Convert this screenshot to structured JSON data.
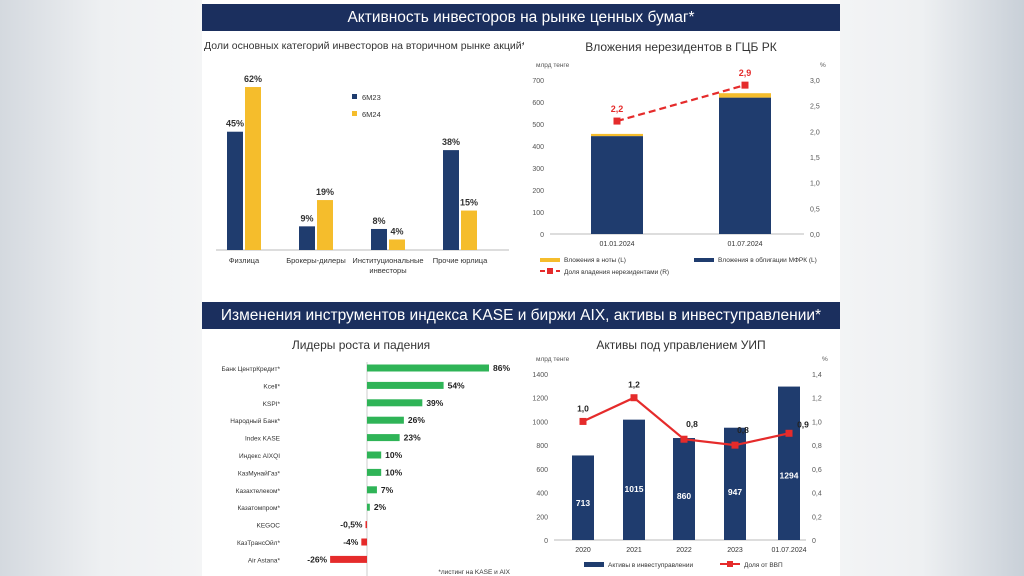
{
  "banner_top": "Активность инвесторов на рынке ценных бумаг*",
  "banner_bottom": "Изменения инструментов индекса KASE и биржи AIX, активы в инвеступравлении*",
  "footnote": "*листинг на KASE и AIX",
  "colors": {
    "navy": "#1f3c6e",
    "gold": "#f5bd2c",
    "green": "#2fb457",
    "red": "#e52b2b",
    "banner": "#1b2f5e"
  },
  "chart_data": [
    {
      "type": "bar",
      "title": "Доли основных категорий инвесторов на вторичном рынке акций**",
      "categories": [
        "Физлица",
        "Брокеры-дилеры",
        "Институциональные инвесторы",
        "Прочие юрлица"
      ],
      "category_lines": [
        [
          "Физлица"
        ],
        [
          "Брокеры-дилеры"
        ],
        [
          "Институциональные",
          "инвесторы"
        ],
        [
          "Прочие юрлица"
        ]
      ],
      "series": [
        {
          "name": "6М23",
          "values": [
            45,
            9,
            8,
            38
          ],
          "labels": [
            "45%",
            "9%",
            "8%",
            "38%"
          ]
        },
        {
          "name": "6М24",
          "values": [
            62,
            19,
            4,
            15
          ],
          "labels": [
            "62%",
            "19%",
            "4%",
            "15%"
          ]
        }
      ],
      "ylim": [
        0,
        70
      ],
      "legend": "top-right"
    },
    {
      "type": "bar",
      "title": "Вложения нерезидентов в ГЦБ РК",
      "ylabel_left": "млрд тенге",
      "ylabel_right": "%",
      "categories": [
        "01.01.2024",
        "01.07.2024"
      ],
      "stacked_series": [
        {
          "name": "Вложения в облигации МФРК (L)",
          "values": [
            445,
            620
          ]
        },
        {
          "name": "Вложения в ноты (L)",
          "values": [
            10,
            20
          ]
        }
      ],
      "line_series": {
        "name": "Доля владения нерезидентами (R)",
        "values": [
          2.2,
          2.9
        ],
        "labels": [
          "2,2",
          "2,9"
        ]
      },
      "yticks_left": [
        "0",
        "100",
        "200",
        "300",
        "400",
        "500",
        "600",
        "700"
      ],
      "yticks_right": [
        "0,0",
        "0,5",
        "1,0",
        "1,5",
        "2,0",
        "2,5",
        "3,0"
      ],
      "ylim_left": [
        0,
        700
      ],
      "ylim_right": [
        0,
        3.0
      ],
      "legend": "bottom"
    },
    {
      "type": "bar",
      "orientation": "horizontal",
      "title": "Лидеры роста и падения",
      "categories": [
        "Банк ЦентрКредит*",
        "Kcell*",
        "KSPI*",
        "Народный Банк*",
        "Index KASE",
        "Индекс AIXQI",
        "КазМунайГаз*",
        "Казахтелеком*",
        "Казатомпром*",
        "KEGOC",
        "КазТрансОйл*",
        "Air Astana*"
      ],
      "values": [
        86,
        54,
        39,
        26,
        23,
        10,
        10,
        7,
        2,
        -0.5,
        -4,
        -26
      ],
      "labels": [
        "86%",
        "54%",
        "39%",
        "26%",
        "23%",
        "10%",
        "10%",
        "7%",
        "2%",
        "-0,5%",
        "-4%",
        "-26%"
      ]
    },
    {
      "type": "bar",
      "title": "Активы под управлением УИП",
      "ylabel_left": "млрд тенге",
      "ylabel_right": "%",
      "categories": [
        "2020",
        "2021",
        "2022",
        "2023",
        "01.07.2024"
      ],
      "bar_series": {
        "name": "Активы в инвеступравлении",
        "values": [
          713,
          1015,
          860,
          947,
          1294
        ],
        "labels": [
          "713",
          "1015",
          "860",
          "947",
          "1294"
        ]
      },
      "line_series": {
        "name": "Доля от ВВП",
        "values": [
          1.0,
          1.2,
          0.85,
          0.8,
          0.9
        ],
        "labels": [
          "1,0",
          "1,2",
          "0,8",
          "0,8",
          "0,9"
        ]
      },
      "yticks_left": [
        "0",
        "200",
        "400",
        "600",
        "800",
        "1000",
        "1200",
        "1400"
      ],
      "yticks_right": [
        "0",
        "0,2",
        "0,4",
        "0,6",
        "0,8",
        "1,0",
        "1,2",
        "1,4"
      ],
      "ylim_left": [
        0,
        1400
      ],
      "ylim_right": [
        0,
        1.4
      ],
      "legend": "bottom"
    }
  ]
}
